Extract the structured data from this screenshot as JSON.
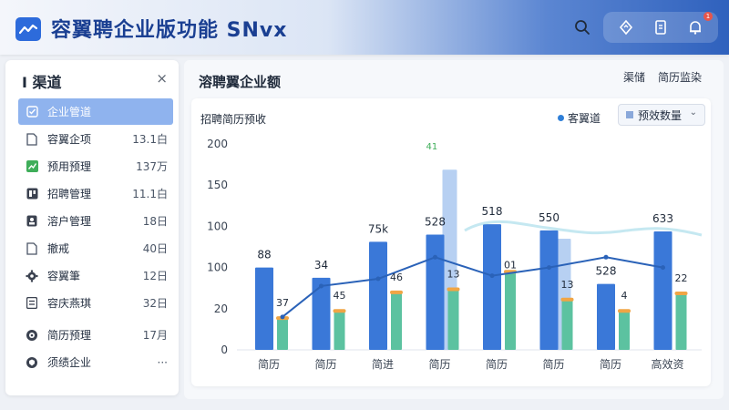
{
  "header": {
    "app_title": "容翼聘企业版功能 SNvx",
    "icons": [
      "search-icon",
      "refresh-icon",
      "document-icon",
      "bell-icon"
    ],
    "notification_count": "1"
  },
  "sidebar": {
    "title": "渠道",
    "close_label": "×",
    "items": [
      {
        "label": "企业管道",
        "count": "",
        "icon": "check-square-icon",
        "active": true
      },
      {
        "label": "容翼企项",
        "count": "13.1白",
        "icon": "document-icon"
      },
      {
        "label": "预用预理",
        "count": "137万",
        "icon": "chart-icon"
      },
      {
        "label": "招聘管理",
        "count": "11.1白",
        "icon": "board-icon"
      },
      {
        "label": "溶户管理",
        "count": "18日",
        "icon": "user-card-icon"
      },
      {
        "label": "撤戒",
        "count": "40日",
        "icon": "file-icon"
      },
      {
        "label": "容翼筆",
        "count": "12日",
        "icon": "gear-icon"
      },
      {
        "label": "容庆燕琪",
        "count": "32日",
        "icon": "grid-icon"
      },
      {
        "label": "简历预理",
        "count": "17月",
        "icon": "clock-icon"
      },
      {
        "label": "须绩企业",
        "count": "···",
        "icon": "shield-icon"
      }
    ]
  },
  "main": {
    "title": "溶聘翼企业额",
    "links": [
      "渠储",
      "简历监染"
    ],
    "card": {
      "title": "招聘简历预收",
      "legend_label": "客翼道",
      "select_value": "预效数量",
      "select_chevron": "⌄"
    }
  },
  "colors": {
    "bar_blue": "#3a78d8",
    "bar_blue_light": "#9fc0ee",
    "bar_green": "#5cc2a0",
    "line": "#2a62b8",
    "marker_orange": "#f0a545",
    "accent": "#2d6bdb"
  },
  "chart_data": {
    "type": "bar",
    "title": "招聘简历预收",
    "categories": [
      "简历",
      "简历",
      "简进",
      "简历",
      "简历",
      "简历",
      "简历",
      "高效资"
    ],
    "y_ticks": [
      "200",
      "150",
      "100",
      "100",
      "20",
      "0"
    ],
    "ylim": [
      0,
      200
    ],
    "series": [
      {
        "name": "",
        "values": [
          80,
          70,
          105,
          112,
          122,
          116,
          64,
          115
        ]
      },
      {
        "name": "",
        "values": [
          0,
          0,
          0,
          175,
          0,
          108,
          0,
          0
        ]
      },
      {
        "name": "",
        "values": [
          30,
          37,
          55,
          58,
          75,
          48,
          37,
          54
        ]
      }
    ],
    "line": [
      32,
      62,
      69,
      90,
      72,
      80,
      90,
      80
    ],
    "bar_labels": [
      "88",
      "34",
      "75k",
      "528",
      "518",
      "550",
      "528",
      "633"
    ],
    "green_labels": [
      "37",
      "45",
      "46",
      "13",
      "",
      "13",
      "4",
      "22"
    ],
    "line_labels": [
      "",
      "",
      "",
      "",
      "01",
      "",
      "",
      ""
    ],
    "annotation": "41"
  }
}
